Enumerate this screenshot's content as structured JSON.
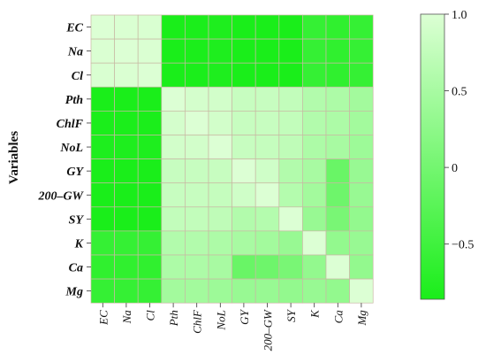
{
  "chart_data": {
    "type": "heatmap",
    "ylabel": "Variables",
    "rows": [
      "EC",
      "Na",
      "Cl",
      "Pth",
      "ChlF",
      "NoL",
      "GY",
      "200–GW",
      "SY",
      "K",
      "Ca",
      "Mg"
    ],
    "columns": [
      "EC",
      "Na",
      "Cl",
      "Pth",
      "ChlF",
      "NoL",
      "GY",
      "200–GW",
      "SY",
      "K",
      "Ca",
      "Mg"
    ],
    "values": [
      [
        1.0,
        0.98,
        0.97,
        -0.86,
        -0.85,
        -0.82,
        -0.9,
        -0.9,
        -0.88,
        -0.6,
        -0.65,
        -0.6
      ],
      [
        0.98,
        1.0,
        0.98,
        -0.86,
        -0.85,
        -0.82,
        -0.9,
        -0.9,
        -0.88,
        -0.6,
        -0.65,
        -0.6
      ],
      [
        0.97,
        0.98,
        1.0,
        -0.86,
        -0.85,
        -0.82,
        -0.9,
        -0.9,
        -0.88,
        -0.6,
        -0.65,
        -0.6
      ],
      [
        -0.86,
        -0.86,
        -0.86,
        1.0,
        0.92,
        0.9,
        0.8,
        0.8,
        0.75,
        0.6,
        0.55,
        0.45
      ],
      [
        -0.85,
        -0.85,
        -0.85,
        0.92,
        1.0,
        0.9,
        0.8,
        0.8,
        0.75,
        0.6,
        0.55,
        0.45
      ],
      [
        -0.82,
        -0.82,
        -0.82,
        0.9,
        0.9,
        1.0,
        0.8,
        0.78,
        0.72,
        0.55,
        0.5,
        0.4
      ],
      [
        -0.9,
        -0.9,
        -0.9,
        0.8,
        0.8,
        0.8,
        1.0,
        0.88,
        0.6,
        0.5,
        -0.1,
        0.35
      ],
      [
        -0.9,
        -0.9,
        -0.9,
        0.8,
        0.8,
        0.78,
        0.88,
        1.0,
        0.62,
        0.45,
        -0.05,
        0.35
      ],
      [
        -0.88,
        -0.88,
        -0.88,
        0.75,
        0.75,
        0.72,
        0.6,
        0.62,
        1.0,
        0.35,
        0.05,
        0.3
      ],
      [
        -0.6,
        -0.6,
        -0.6,
        0.6,
        0.6,
        0.55,
        0.5,
        0.45,
        0.35,
        1.0,
        0.3,
        0.35
      ],
      [
        -0.65,
        -0.65,
        -0.65,
        0.55,
        0.55,
        0.5,
        -0.1,
        -0.05,
        0.05,
        0.3,
        1.0,
        0.3
      ],
      [
        -0.6,
        -0.6,
        -0.6,
        0.45,
        0.45,
        0.4,
        0.35,
        0.35,
        0.3,
        0.35,
        0.3,
        1.0
      ]
    ],
    "scale_range": [
      -0.86,
      1.0
    ],
    "colorbar_ticks": [
      {
        "value": 1.0,
        "label": "1.0"
      },
      {
        "value": 0.5,
        "label": "0.5"
      },
      {
        "value": 0,
        "label": "0"
      },
      {
        "value": -0.5,
        "label": "−0.5"
      }
    ],
    "colors": {
      "low": "#1aee1a",
      "high": "#dcffd4",
      "cell_border": "#c8b9a4"
    },
    "legend": "right colorbar",
    "grid": true
  }
}
